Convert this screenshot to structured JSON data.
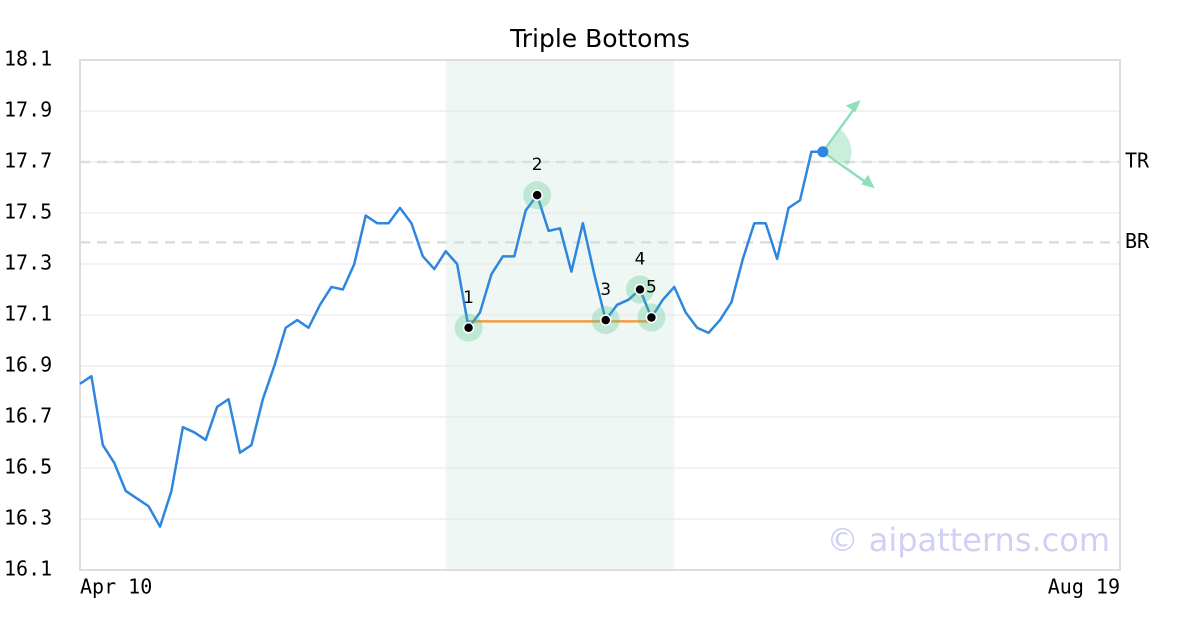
{
  "chart_data": {
    "type": "line",
    "title": "Triple Bottoms",
    "categories": [
      "Apr 10",
      null,
      null,
      null,
      null,
      null,
      null,
      null,
      null,
      null,
      null,
      null,
      null,
      null,
      null,
      null,
      null,
      null,
      null,
      null,
      null,
      null,
      null,
      null,
      null,
      null,
      null,
      null,
      null,
      null,
      null,
      null,
      null,
      null,
      null,
      null,
      null,
      null,
      null,
      null,
      null,
      null,
      null,
      null,
      null,
      null,
      null,
      null,
      null,
      null,
      null,
      null,
      null,
      null,
      null,
      null,
      null,
      null,
      null,
      null,
      null,
      null,
      null,
      null,
      null,
      null,
      null,
      null,
      null,
      null,
      null,
      null,
      null,
      null,
      null,
      null,
      null,
      null,
      null,
      null,
      null,
      null,
      null,
      null,
      null,
      null,
      null,
      null,
      null,
      null,
      null,
      "Aug 19"
    ],
    "values": [
      16.83,
      16.86,
      16.59,
      16.52,
      16.41,
      16.38,
      16.35,
      16.27,
      16.41,
      16.66,
      16.64,
      16.61,
      16.74,
      16.77,
      16.56,
      16.59,
      16.77,
      16.9,
      17.05,
      17.08,
      17.05,
      17.14,
      17.21,
      17.2,
      17.3,
      17.49,
      17.46,
      17.46,
      17.52,
      17.46,
      17.33,
      17.28,
      17.35,
      17.3,
      17.05,
      17.11,
      17.26,
      17.33,
      17.33,
      17.51,
      17.57,
      17.43,
      17.44,
      17.27,
      17.46,
      17.26,
      17.08,
      17.14,
      17.16,
      17.2,
      17.09,
      17.16,
      17.21,
      17.11,
      17.05,
      17.03,
      17.08,
      17.15,
      17.32,
      17.46,
      17.46,
      17.32,
      17.52,
      17.55,
      17.74,
      17.74,
      null,
      null,
      null,
      null,
      null,
      null,
      null,
      null,
      null,
      null,
      null,
      null,
      null,
      null,
      null,
      null,
      null,
      null,
      null,
      null,
      null,
      null,
      null,
      null,
      null,
      null
    ],
    "color": "#2e86de",
    "ylim": [
      16.1,
      18.1
    ],
    "yticks": [
      16.1,
      16.3,
      16.5,
      16.7,
      16.9,
      17.1,
      17.3,
      17.5,
      17.7,
      17.9,
      18.1
    ],
    "grid": true,
    "pattern_points": [
      {
        "label": "1",
        "index": 34
      },
      {
        "label": "2",
        "index": 40
      },
      {
        "label": "3",
        "index": 46
      },
      {
        "label": "4",
        "index": 49
      },
      {
        "label": "5",
        "index": 50
      }
    ],
    "highlight": {
      "from": 32,
      "to": 52
    },
    "support": {
      "value": 17.075,
      "from": 34,
      "to": 50
    },
    "levels": [
      {
        "label": "TR",
        "value": 17.7
      },
      {
        "label": "BR",
        "value": 17.385
      }
    ],
    "watermark": "© aipatterns.com"
  }
}
